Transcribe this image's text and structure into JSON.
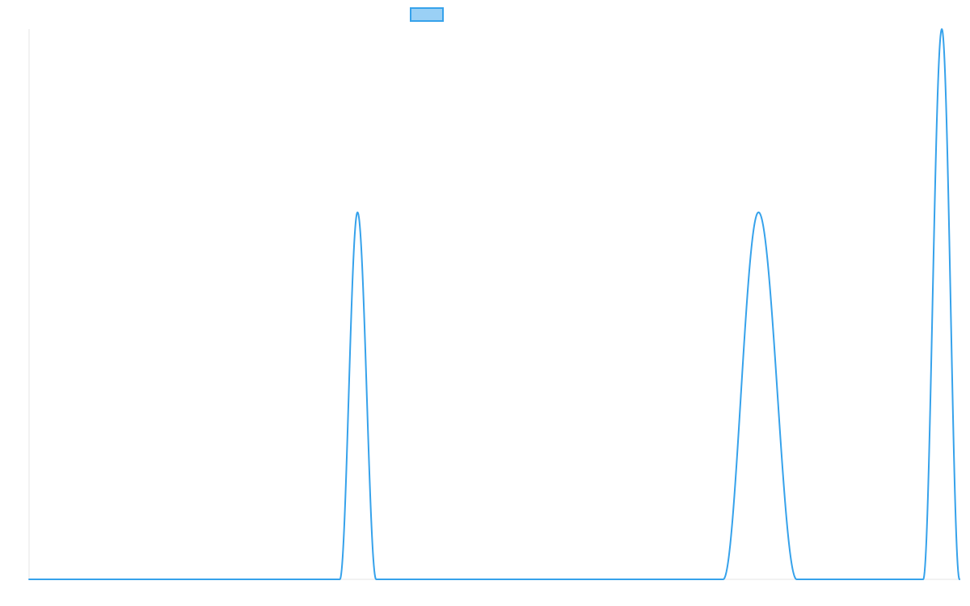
{
  "colors": {
    "series_stroke": "#36a2eb",
    "legend_fill": "#9ad0f5",
    "axis": "#e6e6e6",
    "background": "#ffffff"
  },
  "chart_data": {
    "type": "line",
    "title": "",
    "xlabel": "",
    "ylabel": "",
    "grid": false,
    "legend": {
      "position": "top",
      "entries": [
        {
          "name": ""
        }
      ]
    },
    "xlim": [
      0,
      100
    ],
    "ylim": [
      0,
      1
    ],
    "series": [
      {
        "name": "",
        "color": "#36a2eb",
        "peaks": [
          {
            "center": 35.3,
            "start": 33.4,
            "end": 37.3,
            "value": 0.667
          },
          {
            "center": 78.4,
            "start": 74.6,
            "end": 82.5,
            "value": 0.667
          },
          {
            "center": 98.1,
            "start": 96.1,
            "end": 100.0,
            "value": 1.0
          }
        ],
        "baseline": 0
      }
    ]
  }
}
